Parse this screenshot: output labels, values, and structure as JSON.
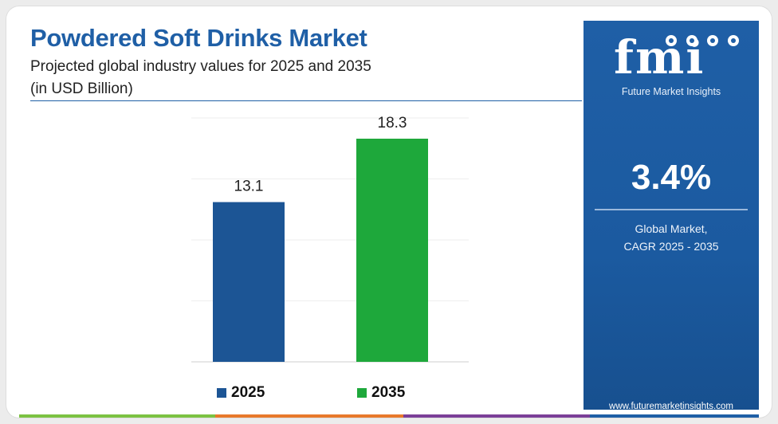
{
  "header": {
    "title": "Powdered Soft Drinks Market",
    "subtitle": "Projected global industry values for 2025 and 2035",
    "unit": "(in USD Billion)"
  },
  "chart_data": {
    "type": "bar",
    "categories": [
      "2025",
      "2035"
    ],
    "values": [
      13.1,
      18.3
    ],
    "data_labels": [
      "13.1",
      "18.3"
    ],
    "colors": [
      "#1c5595",
      "#1ea83b"
    ],
    "ylim": [
      0,
      20
    ],
    "grid": true,
    "legend": {
      "placement": "bottom",
      "entries": [
        {
          "label": "2025",
          "color": "#1c5595"
        },
        {
          "label": "2035",
          "color": "#1ea83b"
        }
      ]
    }
  },
  "sidebar": {
    "logo": "fmi",
    "brand": "Future Market Insights",
    "cagr_value": "3.4%",
    "cagr_label_line1": "Global Market,",
    "cagr_label_line2": "CAGR 2025 - 2035",
    "website": "www.futuremarketinsights.com",
    "color": "#1f5fa6"
  },
  "footer": {
    "stripe_colors": [
      "#7cc242",
      "#e8792b",
      "#7b3f98",
      "#1f5fa6"
    ]
  }
}
